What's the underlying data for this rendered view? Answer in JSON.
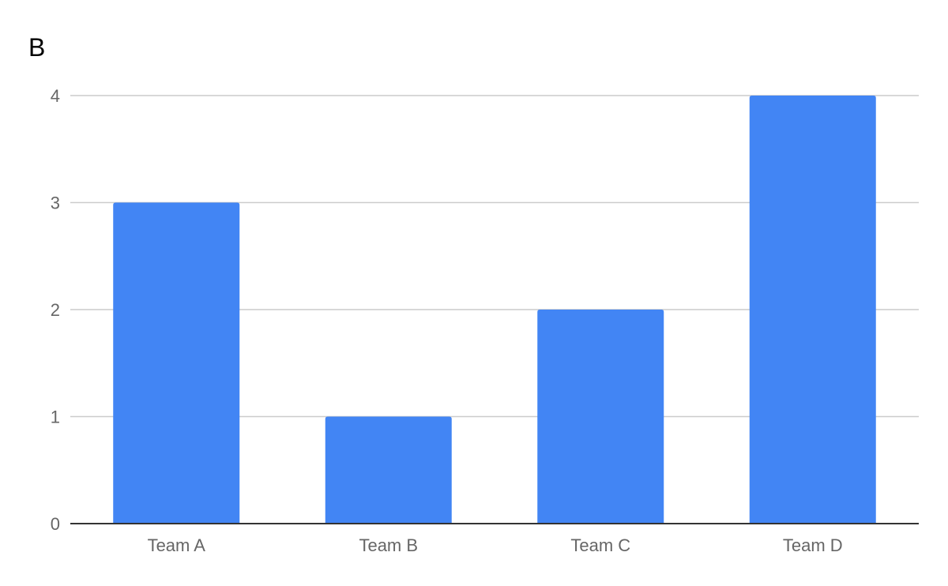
{
  "chart_data": {
    "type": "bar",
    "title": "B",
    "categories": [
      "Team A",
      "Team B",
      "Team C",
      "Team D"
    ],
    "values": [
      3,
      1,
      2,
      4
    ],
    "ylim": [
      0,
      4
    ],
    "yticks": [
      0,
      1,
      2,
      3,
      4
    ],
    "xlabel": "",
    "ylabel": "",
    "grid": true,
    "legend": "none",
    "colors": {
      "bar": "#4285f4"
    }
  }
}
